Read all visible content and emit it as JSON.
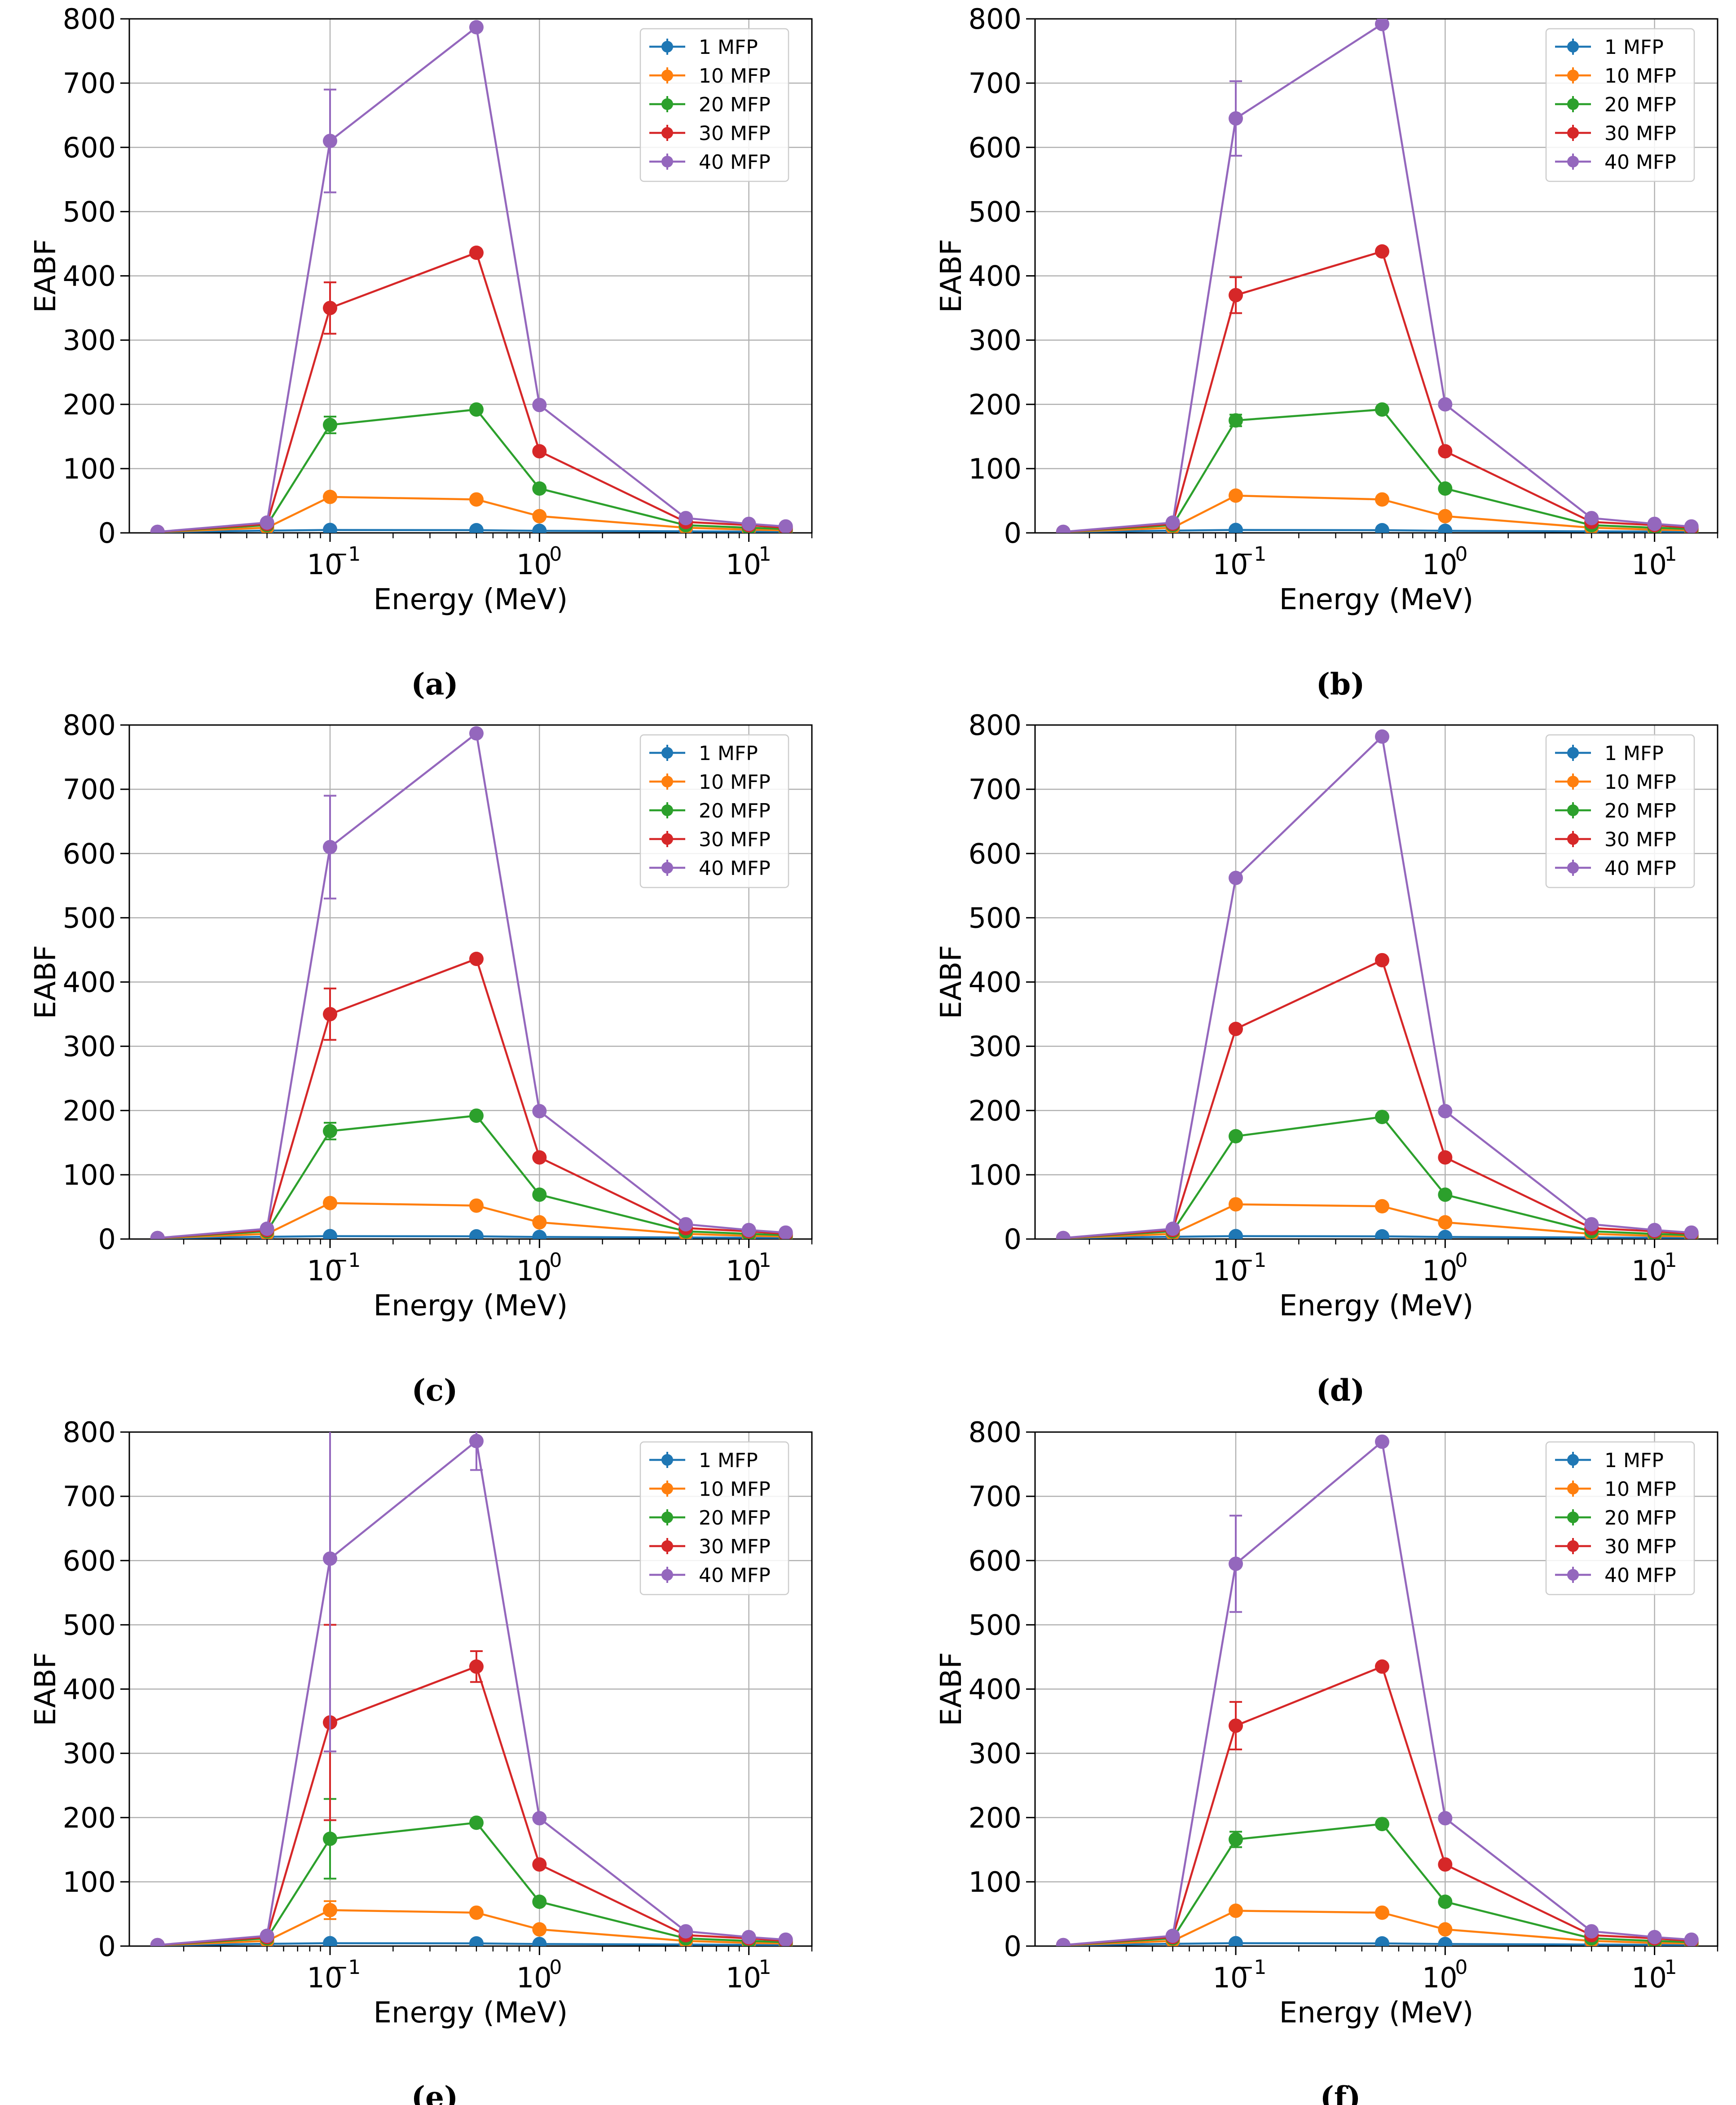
{
  "figure": {
    "panel_labels": [
      "(a)",
      "(b)",
      "(c)",
      "(d)",
      "(e)",
      "(f)"
    ]
  },
  "colors": {
    "1 MFP": "#1f77b4",
    "10 MFP": "#ff7f0e",
    "20 MFP": "#2ca02c",
    "30 MFP": "#d62728",
    "40 MFP": "#9467bd"
  },
  "chart_data": [
    {
      "type": "line",
      "panel": "(a)",
      "xscale": "log",
      "xlabel": "Energy (MeV)",
      "ylabel": "EABF",
      "xlim": [
        0.011,
        20
      ],
      "ylim": [
        0,
        800
      ],
      "yticks": [
        0,
        100,
        200,
        300,
        400,
        500,
        600,
        700,
        800
      ],
      "xticks": [
        0.1,
        1,
        10
      ],
      "xtick_labels": [
        "10",
        "10",
        "10"
      ],
      "xtick_exponents": [
        "−1",
        "0",
        "1"
      ],
      "grid": true,
      "legend_position": "top-right",
      "x": [
        0.015,
        0.05,
        0.1,
        0.5,
        1,
        5,
        10,
        15
      ],
      "series": [
        {
          "name": "1 MFP",
          "values": [
            1.3,
            3.5,
            4.5,
            4.2,
            3.2,
            2.4,
            2.0,
            1.8
          ],
          "errors": [
            0,
            0,
            0,
            0,
            0,
            0,
            0,
            0
          ]
        },
        {
          "name": "10 MFP",
          "values": [
            1.4,
            8,
            56,
            52,
            26,
            8,
            5,
            4
          ],
          "errors": [
            0,
            0,
            2,
            0,
            0,
            0,
            0,
            0
          ]
        },
        {
          "name": "20 MFP",
          "values": [
            1.5,
            12,
            168,
            192,
            69,
            12,
            8,
            6
          ],
          "errors": [
            0,
            0,
            13,
            0,
            0,
            0,
            0,
            0
          ]
        },
        {
          "name": "30 MFP",
          "values": [
            1.5,
            14,
            350,
            436,
            127,
            17,
            12,
            8
          ],
          "errors": [
            0,
            0,
            40,
            0,
            0,
            0,
            0,
            0
          ]
        },
        {
          "name": "40 MFP",
          "values": [
            1.6,
            16,
            610,
            787,
            199,
            23,
            14,
            10
          ],
          "errors": [
            0,
            0,
            80,
            0,
            0,
            0,
            0,
            0
          ]
        }
      ]
    },
    {
      "type": "line",
      "panel": "(b)",
      "xscale": "log",
      "xlabel": "Energy (MeV)",
      "ylabel": "EABF",
      "xlim": [
        0.011,
        20
      ],
      "ylim": [
        0,
        800
      ],
      "yticks": [
        0,
        100,
        200,
        300,
        400,
        500,
        600,
        700,
        800
      ],
      "xticks": [
        0.1,
        1,
        10
      ],
      "xtick_labels": [
        "10",
        "10",
        "10"
      ],
      "xtick_exponents": [
        "−1",
        "0",
        "1"
      ],
      "grid": true,
      "legend_position": "top-right",
      "x": [
        0.015,
        0.05,
        0.1,
        0.5,
        1,
        5,
        10,
        15
      ],
      "series": [
        {
          "name": "1 MFP",
          "values": [
            1.3,
            3.5,
            4.5,
            4.2,
            3.2,
            2.4,
            2.0,
            1.8
          ],
          "errors": [
            0,
            0,
            0,
            0,
            0,
            0,
            0,
            0
          ]
        },
        {
          "name": "10 MFP",
          "values": [
            1.4,
            8,
            58,
            52,
            26,
            8,
            5,
            4
          ],
          "errors": [
            0,
            0,
            2,
            0,
            0,
            0,
            0,
            0
          ]
        },
        {
          "name": "20 MFP",
          "values": [
            1.5,
            12,
            175,
            192,
            69,
            12,
            8,
            6
          ],
          "errors": [
            0,
            0,
            9,
            0,
            0,
            0,
            0,
            0
          ]
        },
        {
          "name": "30 MFP",
          "values": [
            1.5,
            14,
            370,
            438,
            127,
            17,
            12,
            8
          ],
          "errors": [
            0,
            0,
            28,
            0,
            0,
            0,
            0,
            0
          ]
        },
        {
          "name": "40 MFP",
          "values": [
            1.6,
            16,
            645,
            792,
            200,
            23,
            14,
            10
          ],
          "errors": [
            0,
            0,
            58,
            0,
            0,
            0,
            0,
            0
          ]
        }
      ]
    },
    {
      "type": "line",
      "panel": "(c)",
      "xscale": "log",
      "xlabel": "Energy (MeV)",
      "ylabel": "EABF",
      "xlim": [
        0.011,
        20
      ],
      "ylim": [
        0,
        800
      ],
      "yticks": [
        0,
        100,
        200,
        300,
        400,
        500,
        600,
        700,
        800
      ],
      "xticks": [
        0.1,
        1,
        10
      ],
      "xtick_labels": [
        "10",
        "10",
        "10"
      ],
      "xtick_exponents": [
        "−1",
        "0",
        "1"
      ],
      "grid": true,
      "legend_position": "top-right",
      "x": [
        0.015,
        0.05,
        0.1,
        0.5,
        1,
        5,
        10,
        15
      ],
      "series": [
        {
          "name": "1 MFP",
          "values": [
            1.3,
            3.5,
            4.5,
            4.2,
            3.2,
            2.4,
            2.0,
            1.8
          ],
          "errors": [
            0,
            0,
            0,
            0,
            0,
            0,
            0,
            0
          ]
        },
        {
          "name": "10 MFP",
          "values": [
            1.4,
            8,
            56,
            52,
            26,
            8,
            5,
            4
          ],
          "errors": [
            0,
            0,
            2,
            0,
            0,
            0,
            0,
            0
          ]
        },
        {
          "name": "20 MFP",
          "values": [
            1.5,
            12,
            168,
            192,
            69,
            12,
            8,
            6
          ],
          "errors": [
            0,
            0,
            13,
            0,
            0,
            0,
            0,
            0
          ]
        },
        {
          "name": "30 MFP",
          "values": [
            1.5,
            14,
            350,
            436,
            127,
            17,
            12,
            8
          ],
          "errors": [
            0,
            0,
            40,
            0,
            0,
            0,
            0,
            0
          ]
        },
        {
          "name": "40 MFP",
          "values": [
            1.6,
            16,
            610,
            787,
            199,
            23,
            14,
            10
          ],
          "errors": [
            0,
            0,
            80,
            0,
            0,
            0,
            0,
            0
          ]
        }
      ]
    },
    {
      "type": "line",
      "panel": "(d)",
      "xscale": "log",
      "xlabel": "Energy (MeV)",
      "ylabel": "EABF",
      "xlim": [
        0.011,
        20
      ],
      "ylim": [
        0,
        800
      ],
      "yticks": [
        0,
        100,
        200,
        300,
        400,
        500,
        600,
        700,
        800
      ],
      "xticks": [
        0.1,
        1,
        10
      ],
      "xtick_labels": [
        "10",
        "10",
        "10"
      ],
      "xtick_exponents": [
        "−1",
        "0",
        "1"
      ],
      "grid": true,
      "legend_position": "top-right",
      "x": [
        0.015,
        0.05,
        0.1,
        0.5,
        1,
        5,
        10,
        15
      ],
      "series": [
        {
          "name": "1 MFP",
          "values": [
            1.3,
            3.5,
            4.5,
            4.2,
            3.2,
            2.4,
            2.0,
            1.8
          ],
          "errors": [
            0,
            0,
            0,
            0,
            0,
            0,
            0,
            0
          ]
        },
        {
          "name": "10 MFP",
          "values": [
            1.4,
            8,
            54,
            51,
            26,
            8,
            5,
            4
          ],
          "errors": [
            0,
            0,
            0,
            0,
            0,
            0,
            0,
            0
          ]
        },
        {
          "name": "20 MFP",
          "values": [
            1.5,
            12,
            160,
            190,
            69,
            12,
            8,
            6
          ],
          "errors": [
            0,
            0,
            0,
            0,
            0,
            0,
            0,
            0
          ]
        },
        {
          "name": "30 MFP",
          "values": [
            1.5,
            14,
            327,
            434,
            127,
            17,
            12,
            8
          ],
          "errors": [
            0,
            0,
            0,
            0,
            0,
            0,
            0,
            0
          ]
        },
        {
          "name": "40 MFP",
          "values": [
            1.6,
            16,
            562,
            782,
            199,
            23,
            14,
            10
          ],
          "errors": [
            0,
            0,
            0,
            0,
            0,
            0,
            0,
            0
          ]
        }
      ]
    },
    {
      "type": "line",
      "panel": "(e)",
      "xscale": "log",
      "xlabel": "Energy (MeV)",
      "ylabel": "EABF",
      "xlim": [
        0.011,
        20
      ],
      "ylim": [
        0,
        800
      ],
      "yticks": [
        0,
        100,
        200,
        300,
        400,
        500,
        600,
        700,
        800
      ],
      "xticks": [
        0.1,
        1,
        10
      ],
      "xtick_labels": [
        "10",
        "10",
        "10"
      ],
      "xtick_exponents": [
        "−1",
        "0",
        "1"
      ],
      "grid": true,
      "legend_position": "top-right",
      "x": [
        0.015,
        0.05,
        0.1,
        0.5,
        1,
        5,
        10,
        15
      ],
      "series": [
        {
          "name": "1 MFP",
          "values": [
            1.3,
            3.5,
            4.5,
            4.2,
            3.2,
            2.4,
            2.0,
            1.8
          ],
          "errors": [
            0,
            0,
            0,
            0,
            0,
            0,
            0,
            0
          ]
        },
        {
          "name": "10 MFP",
          "values": [
            1.4,
            8,
            56,
            52,
            26,
            8,
            5,
            4
          ],
          "errors": [
            0,
            0,
            14,
            0,
            0,
            0,
            0,
            0
          ]
        },
        {
          "name": "20 MFP",
          "values": [
            1.5,
            12,
            167,
            192,
            69,
            12,
            8,
            6
          ],
          "errors": [
            0,
            0,
            62,
            0,
            0,
            0,
            0,
            0
          ]
        },
        {
          "name": "30 MFP",
          "values": [
            1.5,
            14,
            348,
            435,
            127,
            17,
            12,
            8
          ],
          "errors": [
            0,
            0,
            152,
            24,
            0,
            0,
            0,
            0
          ]
        },
        {
          "name": "40 MFP",
          "values": [
            1.6,
            16,
            603,
            786,
            199,
            23,
            14,
            10
          ],
          "errors": [
            0,
            0,
            300,
            45,
            0,
            0,
            0,
            0
          ]
        }
      ]
    },
    {
      "type": "line",
      "panel": "(f)",
      "xscale": "log",
      "xlabel": "Energy (MeV)",
      "ylabel": "EABF",
      "xlim": [
        0.011,
        20
      ],
      "ylim": [
        0,
        800
      ],
      "yticks": [
        0,
        100,
        200,
        300,
        400,
        500,
        600,
        700,
        800
      ],
      "xticks": [
        0.1,
        1,
        10
      ],
      "xtick_labels": [
        "10",
        "10",
        "10"
      ],
      "xtick_exponents": [
        "−1",
        "0",
        "1"
      ],
      "grid": true,
      "legend_position": "top-right",
      "x": [
        0.015,
        0.05,
        0.1,
        0.5,
        1,
        5,
        10,
        15
      ],
      "series": [
        {
          "name": "1 MFP",
          "values": [
            1.3,
            3.5,
            4.5,
            4.2,
            3.2,
            2.4,
            2.0,
            1.8
          ],
          "errors": [
            0,
            0,
            0,
            0,
            0,
            0,
            0,
            0
          ]
        },
        {
          "name": "10 MFP",
          "values": [
            1.4,
            8,
            55,
            52,
            26,
            8,
            5,
            4
          ],
          "errors": [
            0,
            0,
            2,
            0,
            0,
            0,
            0,
            0
          ]
        },
        {
          "name": "20 MFP",
          "values": [
            1.5,
            12,
            166,
            190,
            69,
            12,
            8,
            6
          ],
          "errors": [
            0,
            0,
            12,
            0,
            0,
            0,
            0,
            0
          ]
        },
        {
          "name": "30 MFP",
          "values": [
            1.5,
            14,
            343,
            435,
            127,
            17,
            12,
            8
          ],
          "errors": [
            0,
            0,
            37,
            0,
            0,
            0,
            0,
            0
          ]
        },
        {
          "name": "40 MFP",
          "values": [
            1.6,
            16,
            595,
            785,
            199,
            23,
            14,
            10
          ],
          "errors": [
            0,
            0,
            75,
            0,
            0,
            0,
            0,
            0
          ]
        }
      ]
    }
  ]
}
